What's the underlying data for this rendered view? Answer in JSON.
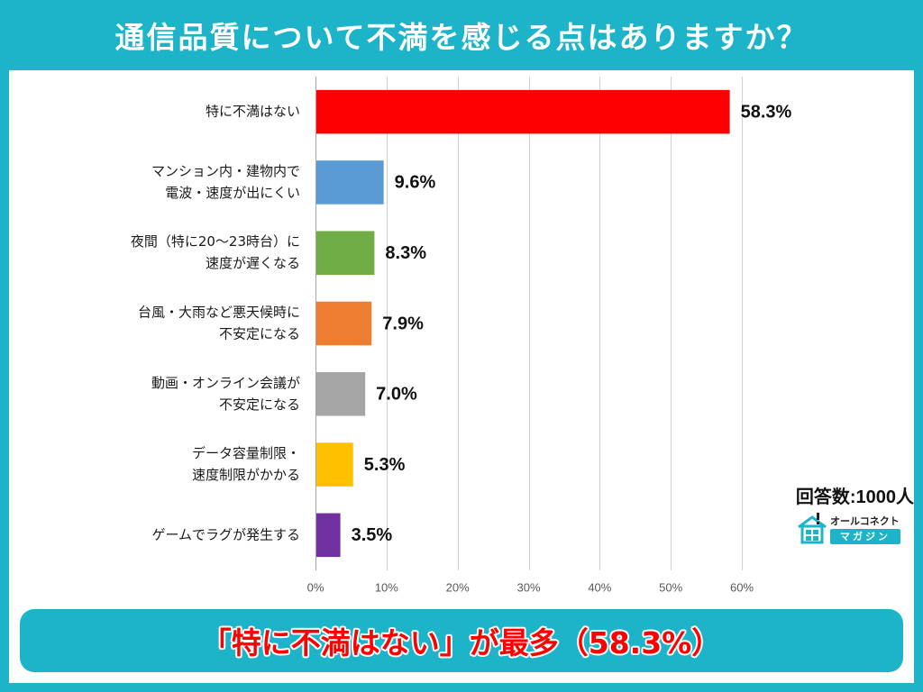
{
  "chart_data": {
    "type": "bar",
    "orientation": "horizontal",
    "title": "通信品質について不満を感じる点はありますか？",
    "categories": [
      [
        "特に不満はない"
      ],
      [
        "マンション内・建物内で",
        "電波・速度が出にくい"
      ],
      [
        "夜間（特に20～23時台）に",
        "速度が遅くなる"
      ],
      [
        "台風・大雨など悪天候時に",
        "不安定になる"
      ],
      [
        "動画・オンライン会議が",
        "不安定になる"
      ],
      [
        "データ容量制限・",
        "速度制限がかかる"
      ],
      [
        "ゲームでラグが発生する"
      ]
    ],
    "values": [
      58.3,
      9.6,
      8.3,
      7.9,
      7.0,
      5.3,
      3.5
    ],
    "value_labels": [
      "58.3%",
      "9.6%",
      "8.3%",
      "7.9%",
      "7.0%",
      "5.3%",
      "3.5%"
    ],
    "colors": [
      "#ff0000",
      "#5b9bd5",
      "#70ad47",
      "#ed7d31",
      "#a5a5a5",
      "#ffc000",
      "#7030a0"
    ],
    "xlim": [
      0,
      60
    ],
    "xticks": [
      0,
      10,
      20,
      30,
      40,
      50,
      60
    ],
    "xtick_labels": [
      "0%",
      "10%",
      "20%",
      "30%",
      "40%",
      "50%",
      "60%"
    ],
    "grid": true
  },
  "respondents": {
    "text": "回答数:1000人"
  },
  "brand": {
    "name_line1": "オールコネクト",
    "name_line2": "マガジン",
    "icon": "house-icon"
  },
  "summary": {
    "text": "「特に不満はない」が最多（58.3%）"
  },
  "theme": {
    "background": "#1db4c9",
    "panel": "#ffffff",
    "summary_text_color": "#ff0000"
  }
}
